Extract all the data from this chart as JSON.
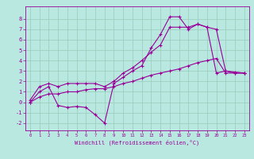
{
  "title": "",
  "xlabel": "Windchill (Refroidissement éolien,°C)",
  "ylabel": "",
  "bg_color": "#b8e8e0",
  "grid_color": "#99ccbb",
  "line_color": "#990099",
  "xlim": [
    -0.5,
    23.5
  ],
  "ylim": [
    -2.7,
    9.2
  ],
  "xticks": [
    0,
    1,
    2,
    3,
    4,
    5,
    6,
    7,
    8,
    9,
    10,
    11,
    12,
    13,
    14,
    15,
    16,
    17,
    18,
    19,
    20,
    21,
    22,
    23
  ],
  "yticks": [
    -2,
    -1,
    0,
    1,
    2,
    3,
    4,
    5,
    6,
    7,
    8
  ],
  "line1_x": [
    0,
    1,
    2,
    3,
    4,
    5,
    6,
    7,
    8,
    9,
    10,
    11,
    12,
    13,
    14,
    15,
    16,
    17,
    18,
    19,
    20,
    21,
    22,
    23
  ],
  "line1_y": [
    0.0,
    1.0,
    1.5,
    -0.3,
    -0.5,
    -0.4,
    -0.5,
    -1.2,
    -2.0,
    1.8,
    2.4,
    3.0,
    3.5,
    5.2,
    6.5,
    8.2,
    8.2,
    7.0,
    7.5,
    7.2,
    2.8,
    3.0,
    2.8,
    2.8
  ],
  "line2_x": [
    0,
    1,
    2,
    3,
    4,
    5,
    6,
    7,
    8,
    9,
    10,
    11,
    12,
    13,
    14,
    15,
    16,
    17,
    18,
    19,
    20,
    21,
    22,
    23
  ],
  "line2_y": [
    0.2,
    1.5,
    1.8,
    1.5,
    1.8,
    1.8,
    1.8,
    1.8,
    1.5,
    2.0,
    2.8,
    3.3,
    4.0,
    4.8,
    5.5,
    7.2,
    7.2,
    7.2,
    7.5,
    7.2,
    7.0,
    3.0,
    2.9,
    2.8
  ],
  "line3_x": [
    0,
    1,
    2,
    3,
    4,
    5,
    6,
    7,
    8,
    9,
    10,
    11,
    12,
    13,
    14,
    15,
    16,
    17,
    18,
    19,
    20,
    21,
    22,
    23
  ],
  "line3_y": [
    0.0,
    0.5,
    0.8,
    0.8,
    1.0,
    1.0,
    1.2,
    1.3,
    1.3,
    1.5,
    1.8,
    2.0,
    2.3,
    2.6,
    2.8,
    3.0,
    3.2,
    3.5,
    3.8,
    4.0,
    4.2,
    2.8,
    2.8,
    2.8
  ]
}
